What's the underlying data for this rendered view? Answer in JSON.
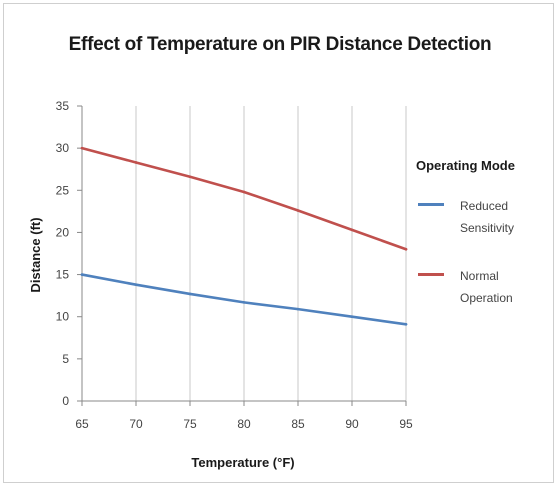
{
  "chart_data": {
    "type": "line",
    "title": "Effect of Temperature on PIR Distance Detection",
    "xlabel": "Temperature (°F)",
    "ylabel": "Distance (ft)",
    "x": [
      65,
      70,
      75,
      80,
      85,
      90,
      95
    ],
    "xlim": [
      65,
      95
    ],
    "ylim": [
      0,
      35
    ],
    "xticks": [
      "65",
      "70",
      "75",
      "80",
      "85",
      "90",
      "95"
    ],
    "yticks": [
      "0",
      "5",
      "10",
      "15",
      "20",
      "25",
      "30",
      "35"
    ],
    "grid": "vertical",
    "legend": {
      "title": "Operating Mode",
      "position": "right"
    },
    "series": [
      {
        "name": "Reduced Sensitivity",
        "color": "#4f81bd",
        "values": [
          15,
          13.8,
          12.7,
          11.7,
          10.9,
          10.0,
          9.1
        ]
      },
      {
        "name": "Normal Operation",
        "color": "#c0504d",
        "values": [
          30,
          28.3,
          26.6,
          24.8,
          22.6,
          20.3,
          18
        ]
      }
    ]
  }
}
